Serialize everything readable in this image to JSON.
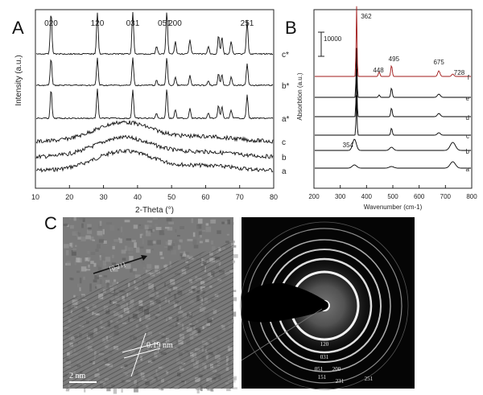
{
  "panels": {
    "a": "A",
    "b": "B",
    "c": "C"
  },
  "chart_data": [
    {
      "type": "line",
      "panel": "A",
      "xlabel": "2-Theta (°)",
      "ylabel": "Intensity (a.u.)",
      "xlim": [
        10,
        80
      ],
      "xticks": [
        10,
        20,
        30,
        40,
        50,
        60,
        70,
        80
      ],
      "peak_labels": [
        {
          "text": "020",
          "x": 14.6
        },
        {
          "text": "120",
          "x": 28.2
        },
        {
          "text": "031",
          "x": 38.6
        },
        {
          "text": "051",
          "x": 48.4
        },
        {
          "text": "200",
          "x": 49.6
        },
        {
          "text": "251",
          "x": 72.2
        }
      ],
      "crystalline_peaks": [
        {
          "x": 14.6,
          "h": 1.0
        },
        {
          "x": 28.2,
          "h": 1.0
        },
        {
          "x": 38.6,
          "h": 1.0
        },
        {
          "x": 45.6,
          "h": 0.18
        },
        {
          "x": 48.6,
          "h": 1.0
        },
        {
          "x": 51.1,
          "h": 0.3
        },
        {
          "x": 55.4,
          "h": 0.35
        },
        {
          "x": 60.8,
          "h": 0.18
        },
        {
          "x": 63.8,
          "h": 0.45
        },
        {
          "x": 64.8,
          "h": 0.4
        },
        {
          "x": 67.5,
          "h": 0.3
        },
        {
          "x": 72.2,
          "h": 0.8
        }
      ],
      "series": [
        {
          "name": "a",
          "kind": "amorphous"
        },
        {
          "name": "b",
          "kind": "amorphous"
        },
        {
          "name": "c",
          "kind": "amorphous"
        },
        {
          "name": "a*",
          "kind": "crystalline"
        },
        {
          "name": "b*",
          "kind": "crystalline"
        },
        {
          "name": "c*",
          "kind": "crystalline"
        }
      ]
    },
    {
      "type": "line",
      "panel": "B",
      "xlabel": "Wavenumber (cm-1)",
      "ylabel": "Absorbtion (a.u.)",
      "xlim": [
        200,
        800
      ],
      "xticks": [
        200,
        300,
        400,
        500,
        600,
        700,
        800
      ],
      "scale_bar_label": "10000",
      "peak_labels": [
        {
          "text": "362",
          "x": 362
        },
        {
          "text": "448",
          "x": 448
        },
        {
          "text": "495",
          "x": 495
        },
        {
          "text": "675",
          "x": 675
        },
        {
          "text": "728",
          "x": 728
        },
        {
          "text": "354",
          "x": 354
        }
      ],
      "series": [
        {
          "name": "a",
          "color": "#000000"
        },
        {
          "name": "b",
          "color": "#000000"
        },
        {
          "name": "c",
          "color": "#000000"
        },
        {
          "name": "d",
          "color": "#000000"
        },
        {
          "name": "e",
          "color": "#000000"
        },
        {
          "name": "f",
          "color": "#a01818"
        }
      ]
    }
  ],
  "tem": {
    "direction_label": "[0-21]",
    "spacing_label": "0.19 nm",
    "scale_label": "2 nm"
  },
  "saed": {
    "ring_labels": [
      "120",
      "031",
      "051",
      "200",
      "151",
      "231",
      "251"
    ]
  }
}
